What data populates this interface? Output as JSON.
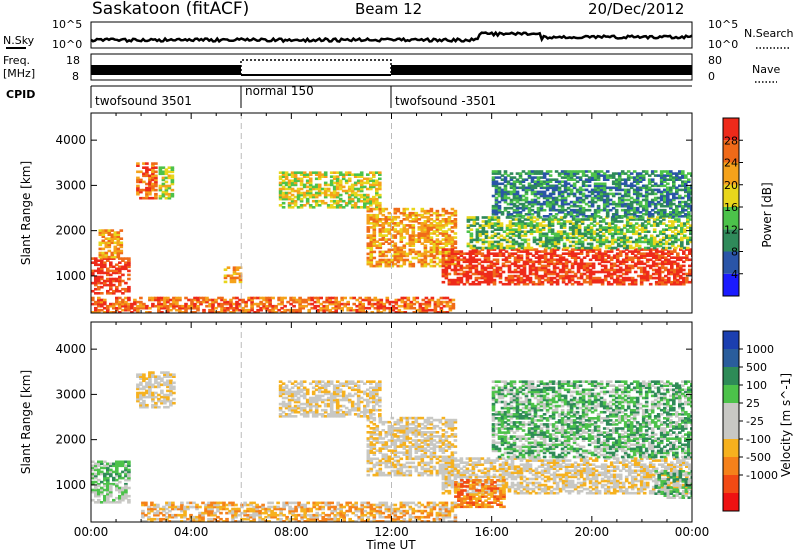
{
  "header": {
    "station": "Saskatoon (fitACF)",
    "beam": "Beam 12",
    "date": "20/Dec/2012"
  },
  "top_panels": {
    "nsky_label": "N.Sky",
    "nsky_ticks": [
      "10^5",
      "10^0"
    ],
    "nsearch_label": "N.Search",
    "nsearch_ticks": [
      "10^5",
      "10^0"
    ],
    "freq_label_line1": "Freq.",
    "freq_label_line2": "[MHz]",
    "freq_ticks": [
      18,
      8
    ],
    "nave_label": "Nave",
    "nave_ticks": [
      80,
      0
    ],
    "cpid_label": "CPID"
  },
  "cpid_segments": [
    {
      "label": "twofsound 3501",
      "start": 0,
      "end": 6
    },
    {
      "label": "normal 150",
      "start": 6,
      "end": 12
    },
    {
      "label": "twofsound -3501",
      "start": 12,
      "end": 24
    }
  ],
  "colors": {
    "power": [
      "#1b1bff",
      "#2a55a8",
      "#2f8a5a",
      "#4cc24a",
      "#e8d61c",
      "#f5a21b",
      "#f06a18",
      "#ee2a1a"
    ],
    "velocity": [
      "#ee1111",
      "#f24a14",
      "#f5811a",
      "#f6b11e",
      "#c8c8c4",
      "#c8c8c4",
      "#4cc24a",
      "#2e8b57",
      "#2a5d9c",
      "#1b3fb0"
    ],
    "ground_scatter": "#a8a8a8"
  },
  "chart_data": [
    {
      "type": "heatmap",
      "title": "Power",
      "xlabel": "",
      "ylabel": "Slant Range [km]",
      "xlim": [
        0,
        24
      ],
      "ylim": [
        180,
        4600
      ],
      "x_ticks": [
        "00:00",
        "04:00",
        "08:00",
        "12:00",
        "16:00",
        "20:00",
        "00:00"
      ],
      "y_ticks": [
        1000,
        2000,
        3000,
        4000
      ],
      "colorbar": {
        "label": "Power [dB]",
        "ticks": [
          4,
          8,
          12,
          16,
          20,
          24,
          28
        ],
        "range": [
          0,
          32
        ]
      },
      "regions": [
        {
          "t": [
            0.0,
            1.5
          ],
          "r": [
            600,
            1400
          ],
          "level": 7
        },
        {
          "t": [
            0.3,
            1.2
          ],
          "r": [
            1400,
            2000
          ],
          "level": 5
        },
        {
          "t": [
            1.8,
            2.6
          ],
          "r": [
            2700,
            3500
          ],
          "level": 6
        },
        {
          "t": [
            2.7,
            3.3
          ],
          "r": [
            2700,
            3400
          ],
          "level": 4
        },
        {
          "t": [
            5.3,
            6.0
          ],
          "r": [
            850,
            1200
          ],
          "level": 5
        },
        {
          "t": [
            7.5,
            11.5
          ],
          "r": [
            2500,
            3300
          ],
          "level": 4
        },
        {
          "t": [
            11.0,
            14.5
          ],
          "r": [
            1200,
            2500
          ],
          "level": 5
        },
        {
          "t": [
            14.0,
            24.0
          ],
          "r": [
            800,
            1600
          ],
          "level": 7
        },
        {
          "t": [
            15.0,
            24.0
          ],
          "r": [
            1600,
            2300
          ],
          "level": 3
        },
        {
          "t": [
            16.0,
            24.0
          ],
          "r": [
            2300,
            3300
          ],
          "level": 2
        },
        {
          "t": [
            0.0,
            14.5
          ],
          "r": [
            180,
            500
          ],
          "level": 6
        }
      ]
    },
    {
      "type": "heatmap",
      "title": "Velocity",
      "xlabel": "Time UT",
      "ylabel": "Slant Range [km]",
      "xlim": [
        0,
        24
      ],
      "ylim": [
        180,
        4600
      ],
      "x_ticks": [
        "00:00",
        "04:00",
        "08:00",
        "12:00",
        "16:00",
        "20:00",
        "00:00"
      ],
      "y_ticks": [
        1000,
        2000,
        3000,
        4000
      ],
      "colorbar": {
        "label": "Velocity [m s^-1]",
        "ticks": [
          "1000",
          "500",
          "100",
          "25",
          "-25",
          "-100",
          "-500",
          "-1000"
        ]
      },
      "regions": [
        {
          "t": [
            0.0,
            1.5
          ],
          "r": [
            1000,
            1500
          ],
          "level": 6
        },
        {
          "t": [
            0.0,
            1.5
          ],
          "r": [
            600,
            1000
          ],
          "level": 5
        },
        {
          "t": [
            1.8,
            3.3
          ],
          "r": [
            2700,
            3500
          ],
          "level": 4
        },
        {
          "t": [
            7.5,
            11.5
          ],
          "r": [
            2500,
            3300
          ],
          "level": 4
        },
        {
          "t": [
            11.0,
            14.5
          ],
          "r": [
            1200,
            2500
          ],
          "level": 4
        },
        {
          "t": [
            14.0,
            24.0
          ],
          "r": [
            800,
            1600
          ],
          "level": 4
        },
        {
          "t": [
            14.5,
            16.5
          ],
          "r": [
            500,
            1100
          ],
          "level": 2
        },
        {
          "t": [
            2.0,
            14.5
          ],
          "r": [
            180,
            600
          ],
          "level": 3
        },
        {
          "t": [
            16.0,
            24.0
          ],
          "r": [
            1600,
            3300
          ],
          "level": 6
        },
        {
          "t": [
            22.5,
            24.0
          ],
          "r": [
            700,
            1300
          ],
          "level": 6
        }
      ]
    }
  ]
}
